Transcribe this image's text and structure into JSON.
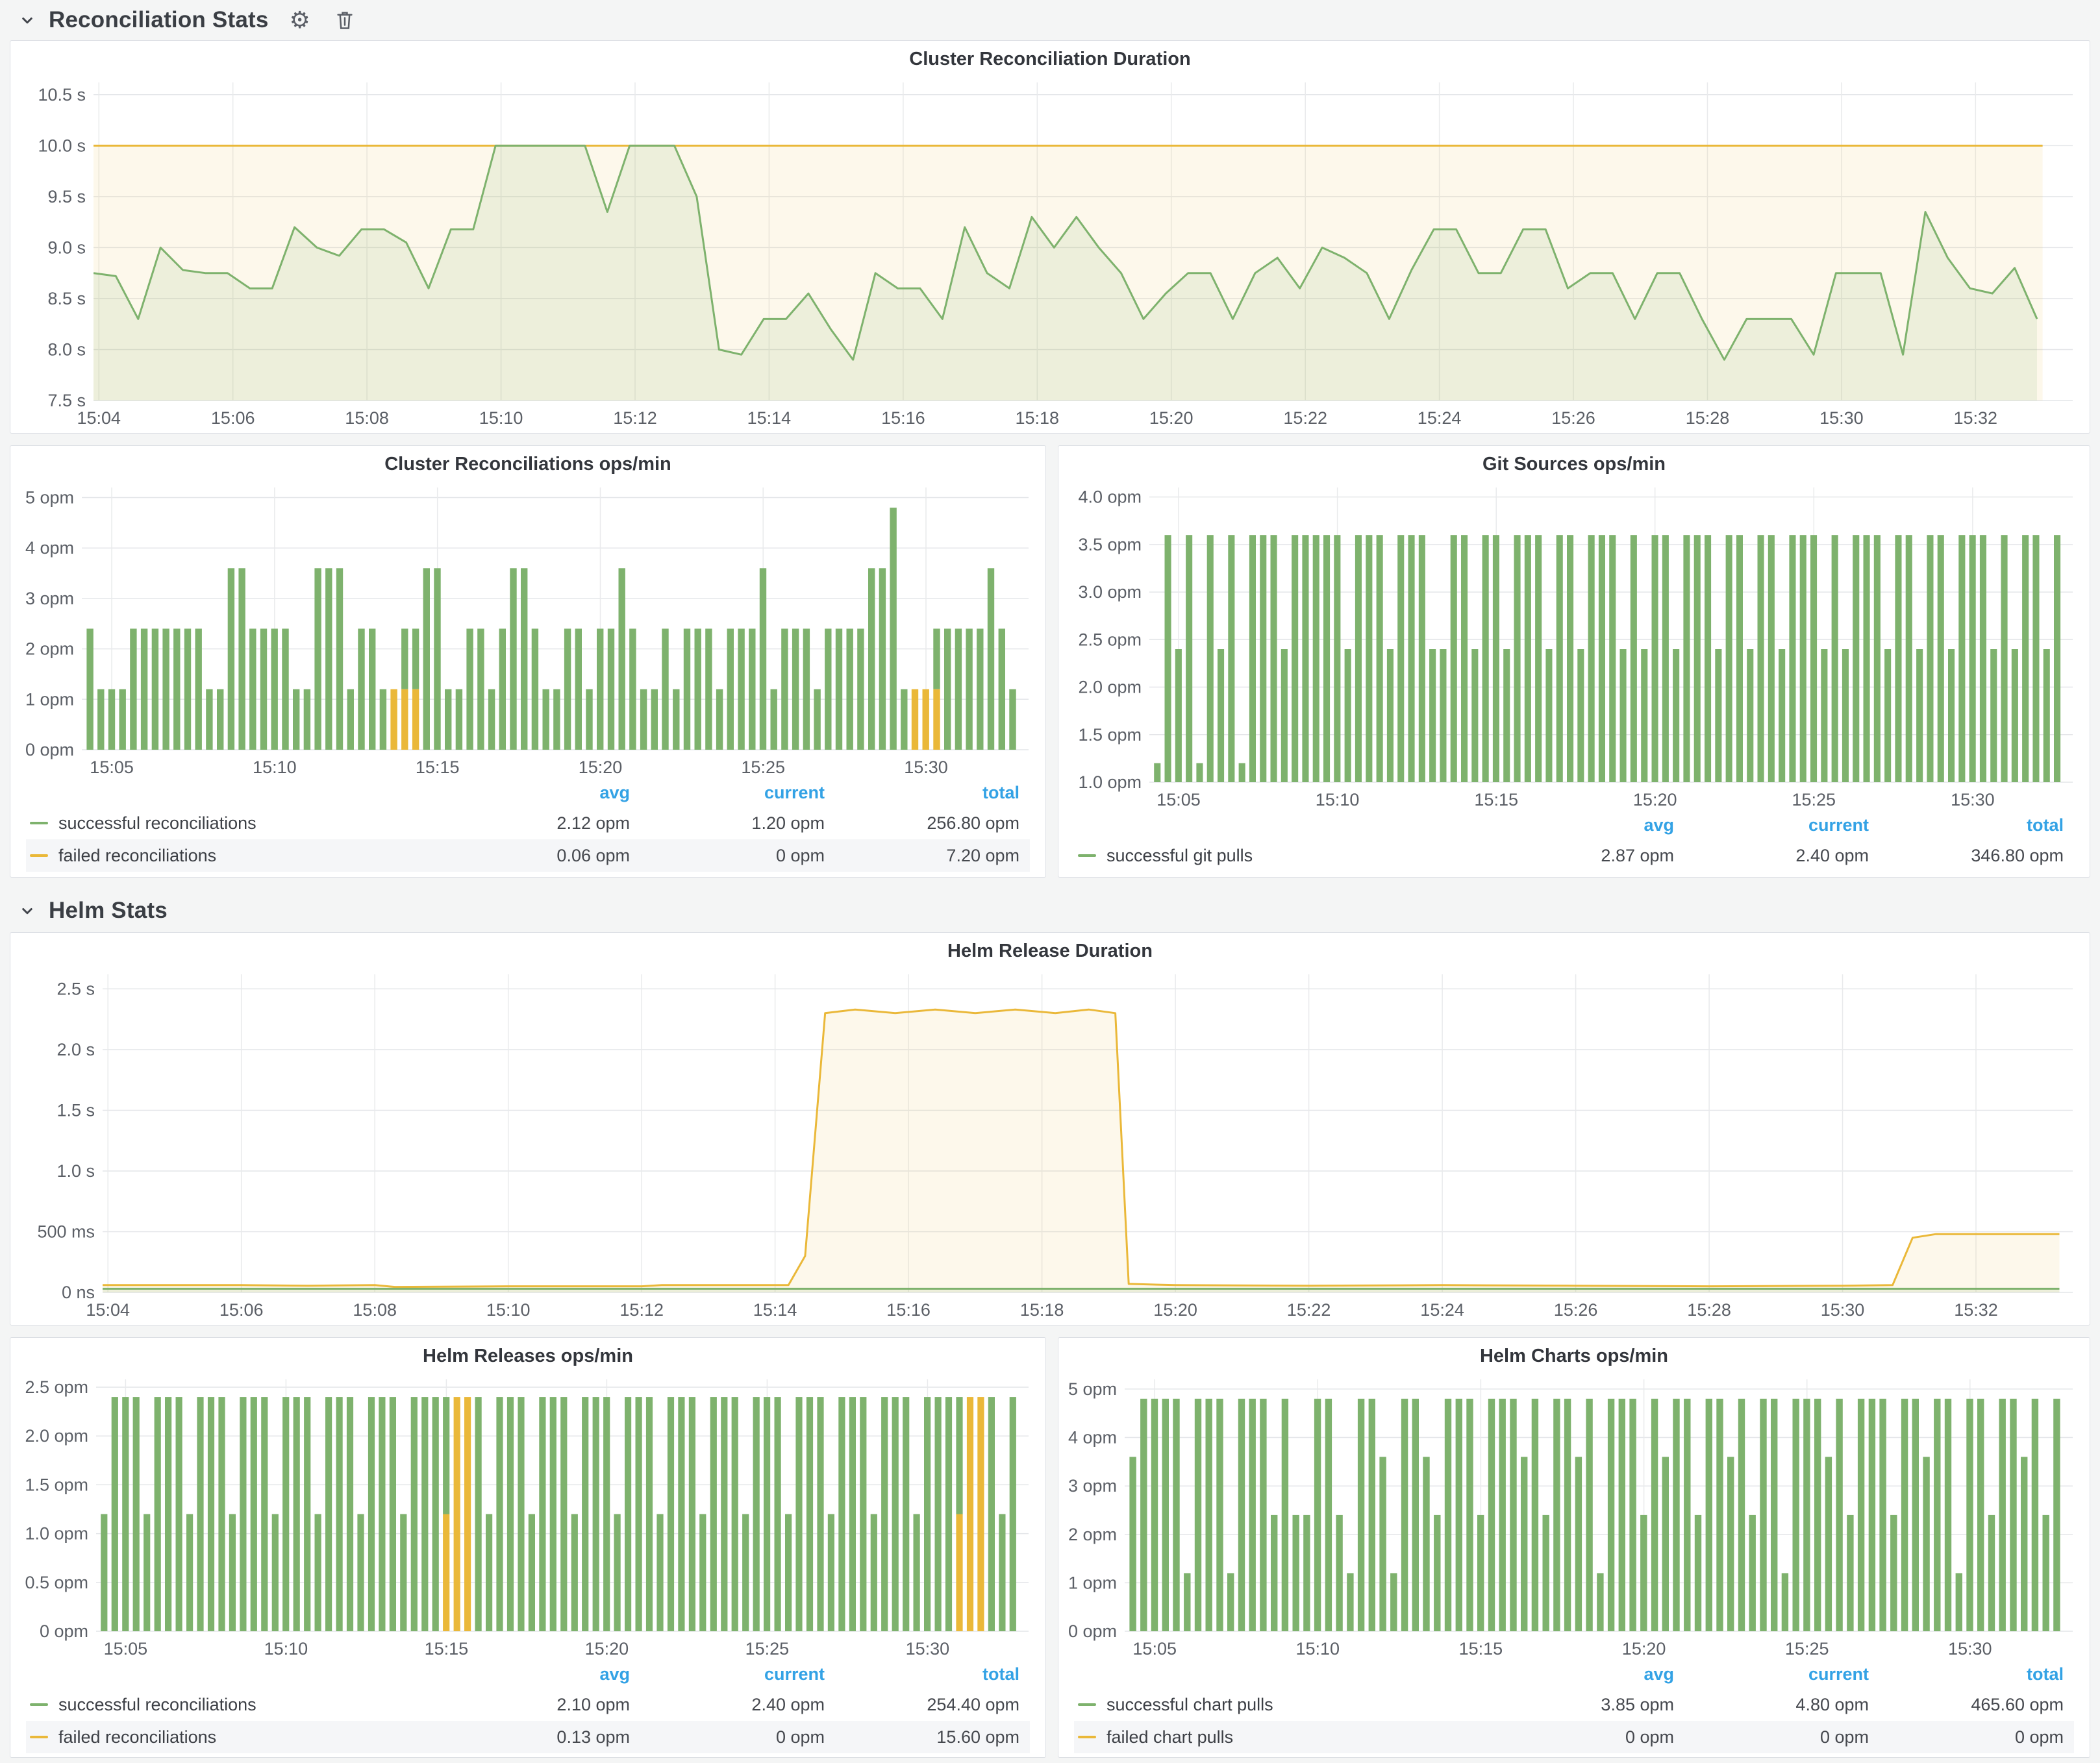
{
  "page": {
    "background": "#F4F5F5"
  },
  "sections": [
    {
      "title": "Reconciliation Stats"
    },
    {
      "title": "Helm Stats"
    }
  ],
  "legend_headers": {
    "avg": "avg",
    "current": "current",
    "total": "total"
  },
  "colors": {
    "green": "#7EB26D",
    "yellow": "#EAB839",
    "link_blue": "#33A2E5"
  },
  "chart_data": [
    {
      "type": "line",
      "title": "Cluster Reconciliation Duration",
      "ml": 118,
      "ylim": [
        7.5,
        10.62
      ],
      "yticks": [
        {
          "v": 7.5,
          "l": "7.5 s"
        },
        {
          "v": 8.0,
          "l": "8.0 s"
        },
        {
          "v": 8.5,
          "l": "8.5 s"
        },
        {
          "v": 9.0,
          "l": "9.0 s"
        },
        {
          "v": 9.5,
          "l": "9.5 s"
        },
        {
          "v": 10.0,
          "l": "10.0 s"
        },
        {
          "v": 10.5,
          "l": "10.5 s"
        }
      ],
      "xlim": [
        3.92,
        33.45
      ],
      "xticks": [
        {
          "v": 4,
          "l": "15:04"
        },
        {
          "v": 6,
          "l": "15:06"
        },
        {
          "v": 8,
          "l": "15:08"
        },
        {
          "v": 10,
          "l": "15:10"
        },
        {
          "v": 12,
          "l": "15:12"
        },
        {
          "v": 14,
          "l": "15:14"
        },
        {
          "v": 16,
          "l": "15:16"
        },
        {
          "v": 18,
          "l": "15:18"
        },
        {
          "v": 20,
          "l": "15:20"
        },
        {
          "v": 22,
          "l": "15:22"
        },
        {
          "v": 24,
          "l": "15:24"
        },
        {
          "v": 26,
          "l": "15:26"
        },
        {
          "v": 28,
          "l": "15:28"
        },
        {
          "v": 30,
          "l": "15:30"
        },
        {
          "v": 32,
          "l": "15:32"
        }
      ],
      "series": [
        {
          "color": "#EAB839",
          "fill": "rgba(234,184,57,0.10)",
          "points": [
            [
              3.92,
              10
            ],
            [
              33.0,
              10
            ]
          ]
        },
        {
          "color": "#7EB26D",
          "fill": "rgba(126,178,109,0.12)",
          "x0": 3.92,
          "dx": 0.3333,
          "values": [
            8.75,
            8.72,
            8.3,
            9.0,
            8.78,
            8.75,
            8.75,
            8.6,
            8.6,
            9.2,
            9.0,
            8.92,
            9.18,
            9.18,
            9.05,
            8.6,
            9.18,
            9.18,
            10.0,
            10.0,
            10.0,
            10.0,
            10.0,
            9.35,
            10.0,
            10.0,
            10.0,
            9.5,
            8.0,
            7.95,
            8.3,
            8.3,
            8.55,
            8.2,
            7.9,
            8.75,
            8.6,
            8.6,
            8.3,
            9.2,
            8.75,
            8.6,
            9.3,
            9.0,
            9.3,
            9.0,
            8.75,
            8.3,
            8.55,
            8.75,
            8.75,
            8.3,
            8.75,
            8.9,
            8.6,
            9.0,
            8.9,
            8.75,
            8.3,
            8.78,
            9.18,
            9.18,
            8.75,
            8.75,
            9.18,
            9.18,
            8.6,
            8.75,
            8.75,
            8.3,
            8.75,
            8.75,
            8.3,
            7.9,
            8.3,
            8.3,
            8.3,
            7.95,
            8.75,
            8.75,
            8.75,
            7.95,
            9.35,
            8.9,
            8.6,
            8.55,
            8.8,
            8.3
          ]
        }
      ],
      "legend": null
    },
    {
      "type": "bar",
      "title": "Cluster Reconciliations ops/min",
      "ml": 100,
      "ylim": [
        0,
        5.2
      ],
      "yticks": [
        {
          "v": 0,
          "l": "0 opm"
        },
        {
          "v": 1,
          "l": "1 opm"
        },
        {
          "v": 2,
          "l": "2 opm"
        },
        {
          "v": 3,
          "l": "3 opm"
        },
        {
          "v": 4,
          "l": "4 opm"
        },
        {
          "v": 5,
          "l": "5 opm"
        }
      ],
      "xlim": [
        4.08,
        33.15
      ],
      "xticks": [
        {
          "v": 5,
          "l": "15:05"
        },
        {
          "v": 10,
          "l": "15:10"
        },
        {
          "v": 15,
          "l": "15:15"
        },
        {
          "v": 20,
          "l": "15:20"
        },
        {
          "v": 25,
          "l": "15:25"
        },
        {
          "v": 30,
          "l": "15:30"
        }
      ],
      "bars": {
        "x0": 4.33,
        "dx": 0.3333,
        "green": [
          2.4,
          1.2,
          1.2,
          1.2,
          2.4,
          2.4,
          2.4,
          2.4,
          2.4,
          2.4,
          2.4,
          1.2,
          1.2,
          3.6,
          3.6,
          2.4,
          2.4,
          2.4,
          2.4,
          1.2,
          1.2,
          3.6,
          3.6,
          3.6,
          1.2,
          2.4,
          2.4,
          1.2,
          0,
          1.2,
          1.2,
          3.6,
          3.6,
          1.2,
          1.2,
          2.4,
          2.4,
          1.2,
          2.4,
          3.6,
          3.6,
          2.4,
          1.2,
          1.2,
          2.4,
          2.4,
          1.2,
          2.4,
          2.4,
          3.6,
          2.4,
          1.2,
          1.2,
          2.4,
          1.2,
          2.4,
          2.4,
          2.4,
          1.2,
          2.4,
          2.4,
          2.4,
          3.6,
          1.2,
          2.4,
          2.4,
          2.4,
          1.2,
          2.4,
          2.4,
          2.4,
          2.4,
          3.6,
          3.6,
          4.8,
          1.2,
          0,
          0,
          1.2,
          2.4,
          2.4,
          2.4,
          2.4,
          3.6,
          2.4,
          1.2
        ],
        "orange": {
          "28": 1.2,
          "29": 1.2,
          "30": 1.2,
          "76": 1.2,
          "77": 1.2,
          "78": 1.2
        }
      },
      "legend": {
        "rows": [
          {
            "label": "successful reconciliations",
            "color": "#7EB26D",
            "values": [
              "2.12 opm",
              "1.20 opm",
              "256.80 opm"
            ]
          },
          {
            "label": "failed reconciliations",
            "color": "#EAB839",
            "values": [
              "0.06 opm",
              "0 opm",
              "7.20 opm"
            ]
          }
        ]
      }
    },
    {
      "type": "bar",
      "title": "Git Sources ops/min",
      "ml": 130,
      "ylim": [
        1.0,
        4.1
      ],
      "yticks": [
        {
          "v": 1.0,
          "l": "1.0 opm"
        },
        {
          "v": 1.5,
          "l": "1.5 opm"
        },
        {
          "v": 2.0,
          "l": "2.0 opm"
        },
        {
          "v": 2.5,
          "l": "2.5 opm"
        },
        {
          "v": 3.0,
          "l": "3.0 opm"
        },
        {
          "v": 3.5,
          "l": "3.5 opm"
        },
        {
          "v": 4.0,
          "l": "4.0 opm"
        }
      ],
      "xlim": [
        4.08,
        33.15
      ],
      "xticks": [
        {
          "v": 5,
          "l": "15:05"
        },
        {
          "v": 10,
          "l": "15:10"
        },
        {
          "v": 15,
          "l": "15:15"
        },
        {
          "v": 20,
          "l": "15:20"
        },
        {
          "v": 25,
          "l": "15:25"
        },
        {
          "v": 30,
          "l": "15:30"
        }
      ],
      "bars": {
        "x0": 4.33,
        "dx": 0.3333,
        "green": [
          1.2,
          3.6,
          2.4,
          3.6,
          1.2,
          3.6,
          2.4,
          3.6,
          1.2,
          3.6,
          3.6,
          3.6,
          2.4,
          3.6,
          3.6,
          3.6,
          3.6,
          3.6,
          2.4,
          3.6,
          3.6,
          3.6,
          2.4,
          3.6,
          3.6,
          3.6,
          2.4,
          2.4,
          3.6,
          3.6,
          2.4,
          3.6,
          3.6,
          2.4,
          3.6,
          3.6,
          3.6,
          2.4,
          3.6,
          3.6,
          2.4,
          3.6,
          3.6,
          3.6,
          2.4,
          3.6,
          2.4,
          3.6,
          3.6,
          2.4,
          3.6,
          3.6,
          3.6,
          2.4,
          3.6,
          3.6,
          2.4,
          3.6,
          3.6,
          2.4,
          3.6,
          3.6,
          3.6,
          2.4,
          3.6,
          2.4,
          3.6,
          3.6,
          3.6,
          2.4,
          3.6,
          3.6,
          2.4,
          3.6,
          3.6,
          2.4,
          3.6,
          3.6,
          3.6,
          2.4,
          3.6,
          2.4,
          3.6,
          3.6,
          2.4,
          3.6
        ],
        "orange": {}
      },
      "legend": {
        "rows": [
          {
            "label": "successful git pulls",
            "color": "#7EB26D",
            "values": [
              "2.87 opm",
              "2.40 opm",
              "346.80 opm"
            ]
          }
        ]
      }
    },
    {
      "type": "line",
      "title": "Helm Release Duration",
      "ml": 132,
      "ylim": [
        0,
        2.62
      ],
      "yticks": [
        {
          "v": 0,
          "l": "0 ns"
        },
        {
          "v": 0.5,
          "l": "500 ms"
        },
        {
          "v": 1.0,
          "l": "1.0 s"
        },
        {
          "v": 1.5,
          "l": "1.5 s"
        },
        {
          "v": 2.0,
          "l": "2.0 s"
        },
        {
          "v": 2.5,
          "l": "2.5 s"
        }
      ],
      "xlim": [
        3.92,
        33.45
      ],
      "xticks": [
        {
          "v": 4,
          "l": "15:04"
        },
        {
          "v": 6,
          "l": "15:06"
        },
        {
          "v": 8,
          "l": "15:08"
        },
        {
          "v": 10,
          "l": "15:10"
        },
        {
          "v": 12,
          "l": "15:12"
        },
        {
          "v": 14,
          "l": "15:14"
        },
        {
          "v": 16,
          "l": "15:16"
        },
        {
          "v": 18,
          "l": "15:18"
        },
        {
          "v": 20,
          "l": "15:20"
        },
        {
          "v": 22,
          "l": "15:22"
        },
        {
          "v": 24,
          "l": "15:24"
        },
        {
          "v": 26,
          "l": "15:26"
        },
        {
          "v": 28,
          "l": "15:28"
        },
        {
          "v": 30,
          "l": "15:30"
        },
        {
          "v": 32,
          "l": "15:32"
        }
      ],
      "series": [
        {
          "color": "#EAB839",
          "fill": "rgba(234,184,57,0.10)",
          "points": [
            [
              3.92,
              0.06
            ],
            [
              6,
              0.06
            ],
            [
              7,
              0.055
            ],
            [
              8,
              0.06
            ],
            [
              8.3,
              0.045
            ],
            [
              10,
              0.05
            ],
            [
              12,
              0.05
            ],
            [
              12.3,
              0.06
            ],
            [
              14.2,
              0.06
            ],
            [
              14.45,
              0.3
            ],
            [
              14.75,
              2.3
            ],
            [
              15.2,
              2.33
            ],
            [
              15.8,
              2.3
            ],
            [
              16.4,
              2.33
            ],
            [
              17.0,
              2.3
            ],
            [
              17.6,
              2.33
            ],
            [
              18.2,
              2.3
            ],
            [
              18.7,
              2.33
            ],
            [
              19.1,
              2.3
            ],
            [
              19.3,
              0.07
            ],
            [
              20,
              0.06
            ],
            [
              22,
              0.055
            ],
            [
              24,
              0.06
            ],
            [
              26,
              0.055
            ],
            [
              28,
              0.05
            ],
            [
              30,
              0.055
            ],
            [
              30.75,
              0.06
            ],
            [
              31.05,
              0.45
            ],
            [
              31.4,
              0.48
            ],
            [
              33.25,
              0.48
            ]
          ]
        },
        {
          "color": "#7EB26D",
          "fill": "rgba(126,178,109,0.12)",
          "points": [
            [
              3.92,
              0.03
            ],
            [
              33.25,
              0.03
            ]
          ]
        }
      ],
      "legend": null
    },
    {
      "type": "bar",
      "title": "Helm Releases ops/min",
      "ml": 122,
      "ylim": [
        0,
        2.58
      ],
      "yticks": [
        {
          "v": 0,
          "l": "0 opm"
        },
        {
          "v": 0.5,
          "l": "0.5 opm"
        },
        {
          "v": 1.0,
          "l": "1.0 opm"
        },
        {
          "v": 1.5,
          "l": "1.5 opm"
        },
        {
          "v": 2.0,
          "l": "2.0 opm"
        },
        {
          "v": 2.5,
          "l": "2.5 opm"
        }
      ],
      "xlim": [
        4.08,
        33.15
      ],
      "xticks": [
        {
          "v": 5,
          "l": "15:05"
        },
        {
          "v": 10,
          "l": "15:10"
        },
        {
          "v": 15,
          "l": "15:15"
        },
        {
          "v": 20,
          "l": "15:20"
        },
        {
          "v": 25,
          "l": "15:25"
        },
        {
          "v": 30,
          "l": "15:30"
        }
      ],
      "bars": {
        "x0": 4.33,
        "dx": 0.3333,
        "green": [
          1.2,
          2.4,
          2.4,
          2.4,
          1.2,
          2.4,
          2.4,
          2.4,
          1.2,
          2.4,
          2.4,
          2.4,
          1.2,
          2.4,
          2.4,
          2.4,
          1.2,
          2.4,
          2.4,
          2.4,
          1.2,
          2.4,
          2.4,
          2.4,
          1.2,
          2.4,
          2.4,
          2.4,
          1.2,
          2.4,
          2.4,
          2.4,
          1.2,
          0,
          0,
          2.4,
          1.2,
          2.4,
          2.4,
          2.4,
          1.2,
          2.4,
          2.4,
          2.4,
          1.2,
          2.4,
          2.4,
          2.4,
          1.2,
          2.4,
          2.4,
          2.4,
          1.2,
          2.4,
          2.4,
          2.4,
          1.2,
          2.4,
          2.4,
          2.4,
          1.2,
          2.4,
          2.4,
          2.4,
          1.2,
          2.4,
          2.4,
          2.4,
          1.2,
          2.4,
          2.4,
          2.4,
          1.2,
          2.4,
          2.4,
          2.4,
          1.2,
          2.4,
          2.4,
          2.4,
          1.2,
          0,
          0,
          2.4,
          1.2,
          2.4
        ],
        "orange": {
          "32": 1.2,
          "33": 2.4,
          "34": 2.4,
          "80": 1.2,
          "81": 2.4,
          "82": 2.4
        }
      },
      "legend": {
        "rows": [
          {
            "label": "successful reconciliations",
            "color": "#7EB26D",
            "values": [
              "2.10 opm",
              "2.40 opm",
              "254.40 opm"
            ]
          },
          {
            "label": "failed reconciliations",
            "color": "#EAB839",
            "values": [
              "0.13 opm",
              "0 opm",
              "15.60 opm"
            ]
          }
        ]
      }
    },
    {
      "type": "bar",
      "title": "Helm Charts ops/min",
      "ml": 92,
      "ylim": [
        0,
        5.2
      ],
      "yticks": [
        {
          "v": 0,
          "l": "0 opm"
        },
        {
          "v": 1,
          "l": "1 opm"
        },
        {
          "v": 2,
          "l": "2 opm"
        },
        {
          "v": 3,
          "l": "3 opm"
        },
        {
          "v": 4,
          "l": "4 opm"
        },
        {
          "v": 5,
          "l": "5 opm"
        }
      ],
      "xlim": [
        4.08,
        33.15
      ],
      "xticks": [
        {
          "v": 5,
          "l": "15:05"
        },
        {
          "v": 10,
          "l": "15:10"
        },
        {
          "v": 15,
          "l": "15:15"
        },
        {
          "v": 20,
          "l": "15:20"
        },
        {
          "v": 25,
          "l": "15:25"
        },
        {
          "v": 30,
          "l": "15:30"
        }
      ],
      "bars": {
        "x0": 4.33,
        "dx": 0.3333,
        "green": [
          3.6,
          4.8,
          4.8,
          4.8,
          4.8,
          1.2,
          4.8,
          4.8,
          4.8,
          1.2,
          4.8,
          4.8,
          4.8,
          2.4,
          4.8,
          2.4,
          2.4,
          4.8,
          4.8,
          2.4,
          1.2,
          4.8,
          4.8,
          3.6,
          1.2,
          4.8,
          4.8,
          3.6,
          2.4,
          4.8,
          4.8,
          4.8,
          2.4,
          4.8,
          4.8,
          4.8,
          3.6,
          4.8,
          2.4,
          4.8,
          4.8,
          3.6,
          4.8,
          1.2,
          4.8,
          4.8,
          4.8,
          2.4,
          4.8,
          3.6,
          4.8,
          4.8,
          2.4,
          4.8,
          4.8,
          3.6,
          4.8,
          2.4,
          4.8,
          4.8,
          1.2,
          4.8,
          4.8,
          4.8,
          3.6,
          4.8,
          2.4,
          4.8,
          4.8,
          4.8,
          2.4,
          4.8,
          4.8,
          3.6,
          4.8,
          4.8,
          1.2,
          4.8,
          4.8,
          2.4,
          4.8,
          4.8,
          3.6,
          4.8,
          2.4,
          4.8
        ],
        "orange": {}
      },
      "legend": {
        "rows": [
          {
            "label": "successful chart pulls",
            "color": "#7EB26D",
            "values": [
              "3.85 opm",
              "4.80 opm",
              "465.60 opm"
            ]
          },
          {
            "label": "failed chart pulls",
            "color": "#EAB839",
            "values": [
              "0 opm",
              "0 opm",
              "0 opm"
            ]
          }
        ]
      }
    }
  ]
}
